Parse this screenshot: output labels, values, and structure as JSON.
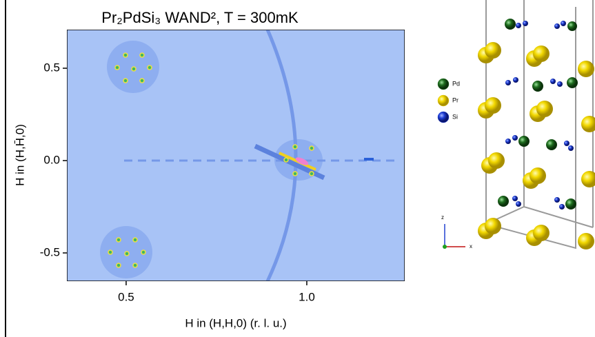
{
  "chart_data": {
    "type": "heatmap",
    "title": "Pr₂PdSi₃ WAND², T = 300mK",
    "xlabel": "H in (H,H,0) (r. l. u.)",
    "ylabel": "H in (H,H̄,0)",
    "xlim": [
      0.336,
      1.271
    ],
    "ylim": [
      -0.653,
      0.709
    ],
    "xticks": [
      0.5,
      {
        "value": 1,
        "label": "1.0"
      }
    ],
    "yticks": [
      0.5,
      {
        "value": 0,
        "label": "0.0"
      },
      -0.5
    ]
  },
  "structure": {
    "legend": [
      {
        "label": "Pd",
        "color": "#1f6e1f"
      },
      {
        "label": "Pr",
        "color": "#e5cc10"
      },
      {
        "label": "Si",
        "color": "#1f3fd6"
      }
    ],
    "axes": [
      "z",
      "x"
    ]
  }
}
